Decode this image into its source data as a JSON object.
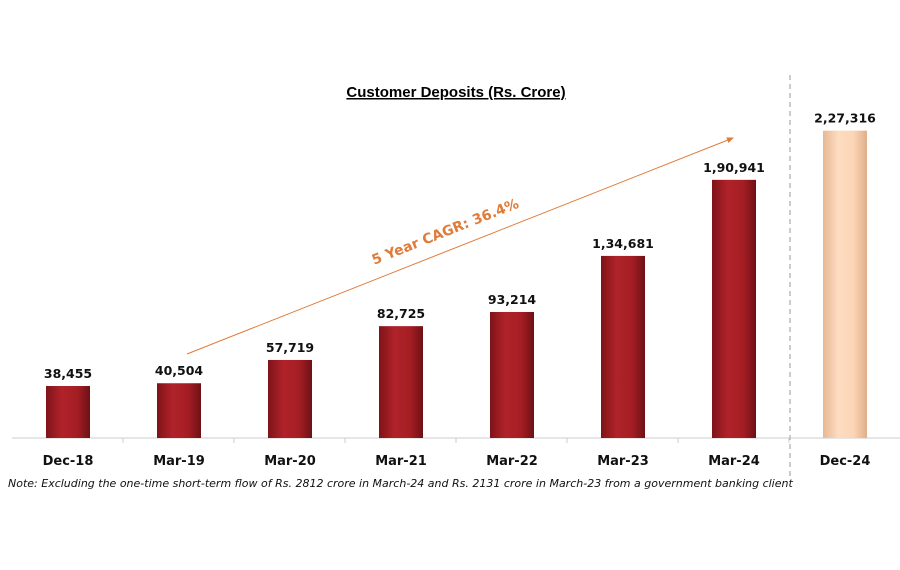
{
  "chart_data": {
    "type": "bar",
    "title": "Customer Deposits (Rs. Crore)",
    "categories": [
      "Dec-18",
      "Mar-19",
      "Mar-20",
      "Mar-21",
      "Mar-22",
      "Mar-23",
      "Mar-24",
      "Dec-24"
    ],
    "values": [
      38455,
      40504,
      57719,
      82725,
      93214,
      134681,
      190941,
      227316
    ],
    "value_labels": [
      "38,455",
      "40,504",
      "57,719",
      "82,725",
      "93,214",
      "1,34,681",
      "1,90,941",
      "2,27,316"
    ],
    "bar_colors": [
      "#A51E24",
      "#A51E24",
      "#A51E24",
      "#A51E24",
      "#A51E24",
      "#A51E24",
      "#A51E24",
      "#FCD5B5"
    ],
    "ylim": [
      0,
      250000
    ],
    "grid": false,
    "annotation": {
      "text": "5 Year CAGR: 36.4%",
      "color": "#E07B39"
    },
    "separator_after": "Mar-24",
    "note": "Note: Excluding the one-time short-term flow of Rs. 2812 crore in March-24 and Rs. 2131 crore in March-23 from a government banking client"
  }
}
